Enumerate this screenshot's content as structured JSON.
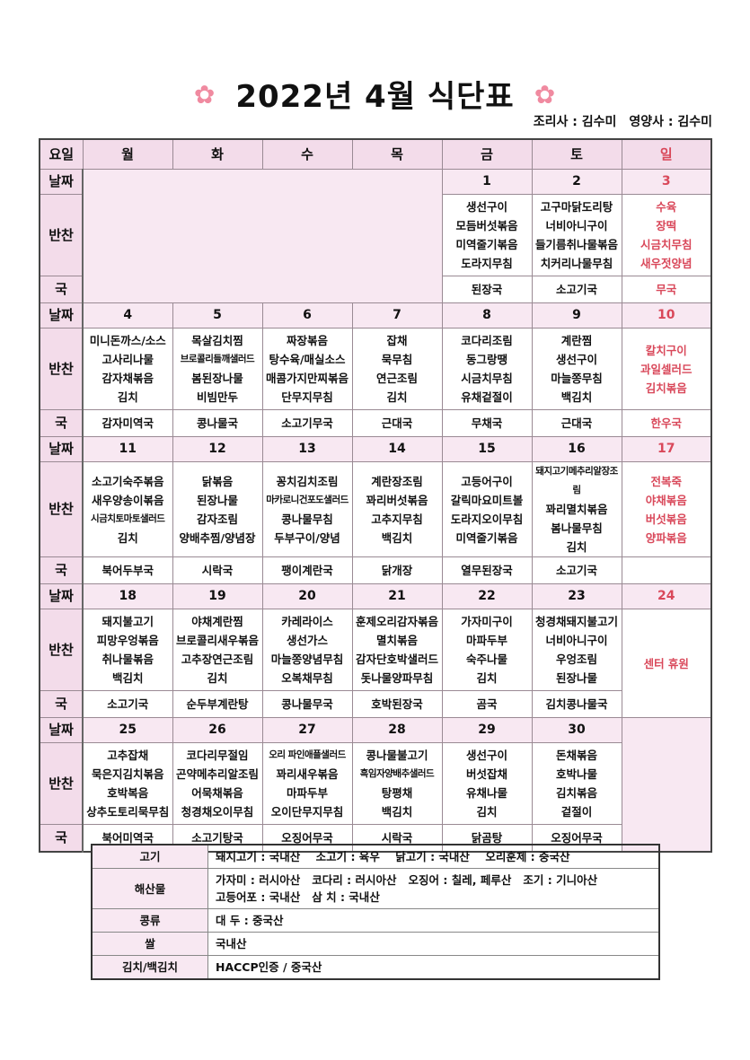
{
  "title": "2022년 4월 식단표",
  "flower_icon": "flower-icon",
  "staff": {
    "cook": "조리사 : 김수미",
    "nutritionist": "영양사 : 김수미"
  },
  "colors": {
    "header_bg": "#f3dcea",
    "date_bg": "#f8e8f2",
    "sunday_red": "#d9485a",
    "flower": "#f08aa0"
  },
  "labels": {
    "weekday": "요일",
    "date": "날짜",
    "side": "반찬",
    "soup": "국"
  },
  "days": [
    "월",
    "화",
    "수",
    "목",
    "금",
    "토",
    "일"
  ],
  "weeks": [
    {
      "cells": [
        null,
        null,
        null,
        null,
        {
          "date": "1",
          "side": [
            "생선구이",
            "모듬버섯볶음",
            "미역줄기볶음",
            "도라지무침"
          ],
          "soup": "된장국"
        },
        {
          "date": "2",
          "side": [
            "고구마닭도리탕",
            "너비아니구이",
            "들기름취나물볶음",
            "치커리나물무침"
          ],
          "soup": "소고기국"
        },
        {
          "date": "3",
          "side": [
            "수육",
            "장떡",
            "시금치무침",
            "새우젓양념"
          ],
          "soup": "무국"
        }
      ]
    },
    {
      "cells": [
        {
          "date": "4",
          "side": [
            "미니돈까스/소스",
            "고사리나물",
            "감자채볶음",
            "김치"
          ],
          "soup": "감자미역국"
        },
        {
          "date": "5",
          "side": [
            "목살김치찜",
            "브로콜리들깨샐러드",
            "봄된장나물",
            "비빔만두"
          ],
          "soup": "콩나물국"
        },
        {
          "date": "6",
          "side": [
            "짜장볶음",
            "탕수육/매실소스",
            "매콤가지만찌볶음",
            "단무지무침"
          ],
          "soup": "소고기무국"
        },
        {
          "date": "7",
          "side": [
            "잡채",
            "묵무침",
            "연근조림",
            "김치"
          ],
          "soup": "근대국"
        },
        {
          "date": "8",
          "side": [
            "코다리조림",
            "동그랑땡",
            "시금치무침",
            "유채겉절이"
          ],
          "soup": "무채국"
        },
        {
          "date": "9",
          "side": [
            "계란찜",
            "생선구이",
            "마늘쫑무침",
            "백김치"
          ],
          "soup": "근대국"
        },
        {
          "date": "10",
          "side": [
            "칼치구이",
            "과일셀러드",
            "김치볶음"
          ],
          "soup": "한우국"
        }
      ]
    },
    {
      "cells": [
        {
          "date": "11",
          "side": [
            "소고기숙주볶음",
            "새우양송이볶음",
            "시금치토마토샐러드",
            "김치"
          ],
          "soup": "북어두부국"
        },
        {
          "date": "12",
          "side": [
            "닭볶음",
            "된장나물",
            "감자조림",
            "양배추찜/양념장"
          ],
          "soup": "시락국"
        },
        {
          "date": "13",
          "side": [
            "꽁치김치조림",
            "마카로니건포도샐러드",
            "콩나물무침",
            "두부구이/양념"
          ],
          "soup": "팽이계란국"
        },
        {
          "date": "14",
          "side": [
            "계란장조림",
            "꽈리버섯볶음",
            "고추지무침",
            "백김치"
          ],
          "soup": "닭개장"
        },
        {
          "date": "15",
          "side": [
            "고등어구이",
            "갈릭마요미트볼",
            "도라지오이무침",
            "미역줄기볶음"
          ],
          "soup": "열무된장국"
        },
        {
          "date": "16",
          "side": [
            "돼지고기메추리알장조림",
            "꽈리멸치볶음",
            "봄나물무침",
            "김치"
          ],
          "soup": "소고기국"
        },
        {
          "date": "17",
          "side": [
            "전복죽",
            "야채볶음",
            "버섯볶음",
            "양파볶음"
          ],
          "soup": ""
        }
      ]
    },
    {
      "cells": [
        {
          "date": "18",
          "side": [
            "돼지불고기",
            "피망우엉볶음",
            "취나물볶음",
            "백김치"
          ],
          "soup": "소고기국"
        },
        {
          "date": "19",
          "side": [
            "야채계란찜",
            "브로콜리새우볶음",
            "고추장연근조림",
            "김치"
          ],
          "soup": "순두부계란탕"
        },
        {
          "date": "20",
          "side": [
            "카레라이스",
            "생선가스",
            "마늘쫑양념무침",
            "오복채무침"
          ],
          "soup": "콩나물무국"
        },
        {
          "date": "21",
          "side": [
            "훈제오리감자볶음",
            "멸치볶음",
            "감자단호박샐러드",
            "돗나물양파무침"
          ],
          "soup": "호박된장국"
        },
        {
          "date": "22",
          "side": [
            "가자미구이",
            "마파두부",
            "숙주나물",
            "김치"
          ],
          "soup": "곰국"
        },
        {
          "date": "23",
          "side": [
            "청경채돼지불고기",
            "너비아니구이",
            "우엉조림",
            "된장나물"
          ],
          "soup": "김치콩나물국"
        },
        {
          "date": "24",
          "closed": "센터  휴원"
        }
      ]
    },
    {
      "cells": [
        {
          "date": "25",
          "side": [
            "고추잡채",
            "묵은지김치볶음",
            "호박복음",
            "상추도토리묵무침"
          ],
          "soup": "북어미역국"
        },
        {
          "date": "26",
          "side": [
            "코다리무절임",
            "곤약메추리알조림",
            "어묵채볶음",
            "청경채오이무침"
          ],
          "soup": "소고기탕국"
        },
        {
          "date": "27",
          "side": [
            "오리 파인애플샐러드",
            "꽈리새우볶음",
            "마파두부",
            "오이단무지무침"
          ],
          "soup": "오징어무국"
        },
        {
          "date": "28",
          "side": [
            "콩나물불고기",
            "흑임자양배추샐러드",
            "탕평채",
            "백김치"
          ],
          "soup": "시락국"
        },
        {
          "date": "29",
          "side": [
            "생선구이",
            "버섯잡채",
            "유채나물",
            "김치"
          ],
          "soup": "닭곰탕"
        },
        {
          "date": "30",
          "side": [
            "돈채볶음",
            "호박나물",
            "김치볶음",
            "겉절이"
          ],
          "soup": "오징어무국"
        },
        null
      ]
    }
  ],
  "origin": [
    {
      "label": "고기",
      "lines": [
        "돼지고기 : 국내산    소고기 : 육우    닭고기 : 국내산    오리훈제 : 중국산"
      ]
    },
    {
      "label": "해산물",
      "lines": [
        "가자미 : 러시아산   코다리 : 러시아산   오징어 : 칠레, 페루산   조기 : 기니아산",
        "고등어포 : 국내산   삼 치 : 국내산"
      ]
    },
    {
      "label": "콩류",
      "lines": [
        "대 두 : 중국산"
      ]
    },
    {
      "label": "쌀",
      "lines": [
        "국내산"
      ]
    },
    {
      "label": "김치/백김치",
      "lines": [
        "HACCP인증 / 중국산"
      ]
    }
  ]
}
